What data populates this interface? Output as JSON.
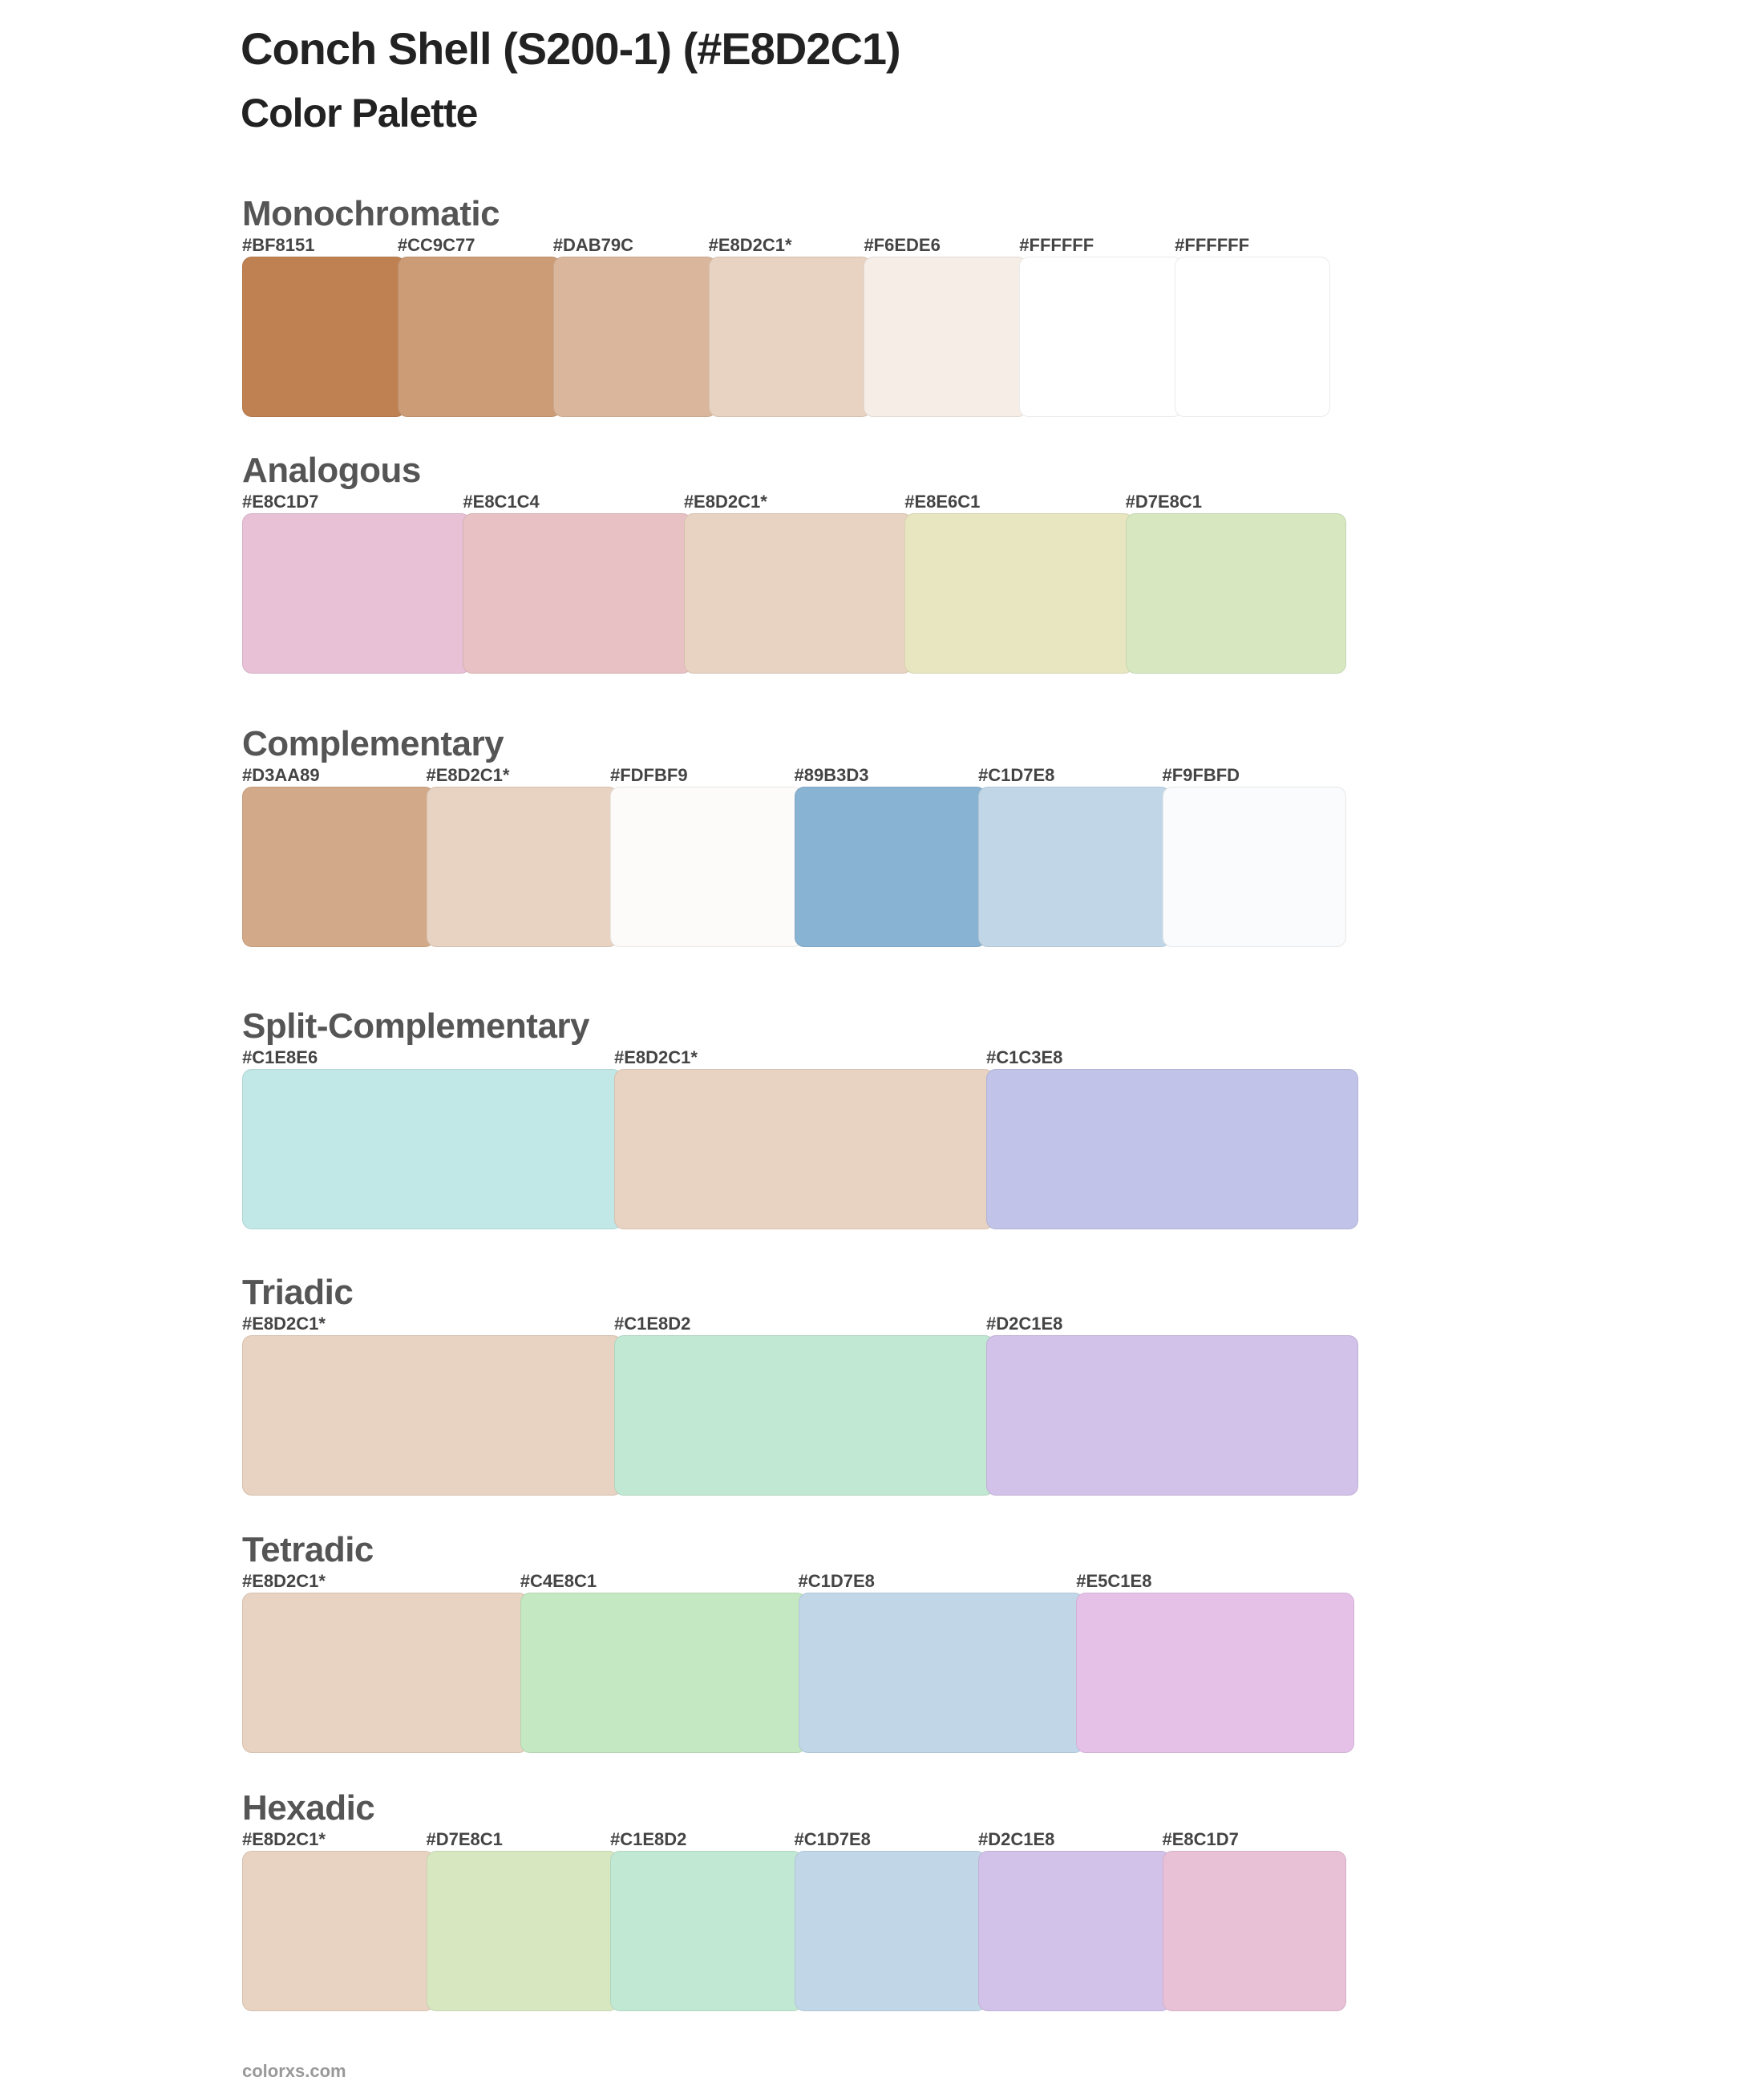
{
  "header": {
    "title": "Conch Shell (S200-1) (#E8D2C1)",
    "subtitle": "Color Palette"
  },
  "sections": [
    {
      "name": "Monochromatic",
      "colors": [
        {
          "label": "#BF8151",
          "hex": "#BF8151"
        },
        {
          "label": "#CC9C77",
          "hex": "#CC9C77"
        },
        {
          "label": "#DAB79C",
          "hex": "#DAB79C"
        },
        {
          "label": "#E8D2C1*",
          "hex": "#E8D2C1"
        },
        {
          "label": "#F6EDE6",
          "hex": "#F6EDE6"
        },
        {
          "label": "#FFFFFF",
          "hex": "#FFFFFF"
        },
        {
          "label": "#FFFFFF",
          "hex": "#FFFFFF"
        }
      ]
    },
    {
      "name": "Analogous",
      "colors": [
        {
          "label": "#E8C1D7",
          "hex": "#E8C1D7"
        },
        {
          "label": "#E8C1C4",
          "hex": "#E8C1C4"
        },
        {
          "label": "#E8D2C1*",
          "hex": "#E8D2C1"
        },
        {
          "label": "#E8E6C1",
          "hex": "#E8E6C1"
        },
        {
          "label": "#D7E8C1",
          "hex": "#D7E8C1"
        }
      ]
    },
    {
      "name": "Complementary",
      "colors": [
        {
          "label": "#D3AA89",
          "hex": "#D3AA89"
        },
        {
          "label": "#E8D2C1*",
          "hex": "#E8D2C1"
        },
        {
          "label": "#FDFBF9",
          "hex": "#FDFBF9"
        },
        {
          "label": "#89B3D3",
          "hex": "#89B3D3"
        },
        {
          "label": "#C1D7E8",
          "hex": "#C1D7E8"
        },
        {
          "label": "#F9FBFD",
          "hex": "#F9FBFD"
        }
      ]
    },
    {
      "name": "Split-Complementary",
      "colors": [
        {
          "label": "#C1E8E6",
          "hex": "#C1E8E6"
        },
        {
          "label": "#E8D2C1*",
          "hex": "#E8D2C1"
        },
        {
          "label": "#C1C3E8",
          "hex": "#C1C3E8"
        }
      ]
    },
    {
      "name": "Triadic",
      "colors": [
        {
          "label": "#E8D2C1*",
          "hex": "#E8D2C1"
        },
        {
          "label": "#C1E8D2",
          "hex": "#C1E8D2"
        },
        {
          "label": "#D2C1E8",
          "hex": "#D2C1E8"
        }
      ]
    },
    {
      "name": "Tetradic",
      "colors": [
        {
          "label": "#E8D2C1*",
          "hex": "#E8D2C1"
        },
        {
          "label": "#C4E8C1",
          "hex": "#C4E8C1"
        },
        {
          "label": "#C1D7E8",
          "hex": "#C1D7E8"
        },
        {
          "label": "#E5C1E8",
          "hex": "#E5C1E8"
        }
      ]
    },
    {
      "name": "Hexadic",
      "colors": [
        {
          "label": "#E8D2C1*",
          "hex": "#E8D2C1"
        },
        {
          "label": "#D7E8C1",
          "hex": "#D7E8C1"
        },
        {
          "label": "#C1E8D2",
          "hex": "#C1E8D2"
        },
        {
          "label": "#C1D7E8",
          "hex": "#C1D7E8"
        },
        {
          "label": "#D2C1E8",
          "hex": "#D2C1E8"
        },
        {
          "label": "#E8C1D7",
          "hex": "#E8C1D7"
        }
      ]
    }
  ],
  "footer": {
    "text": "colorxs.com"
  }
}
